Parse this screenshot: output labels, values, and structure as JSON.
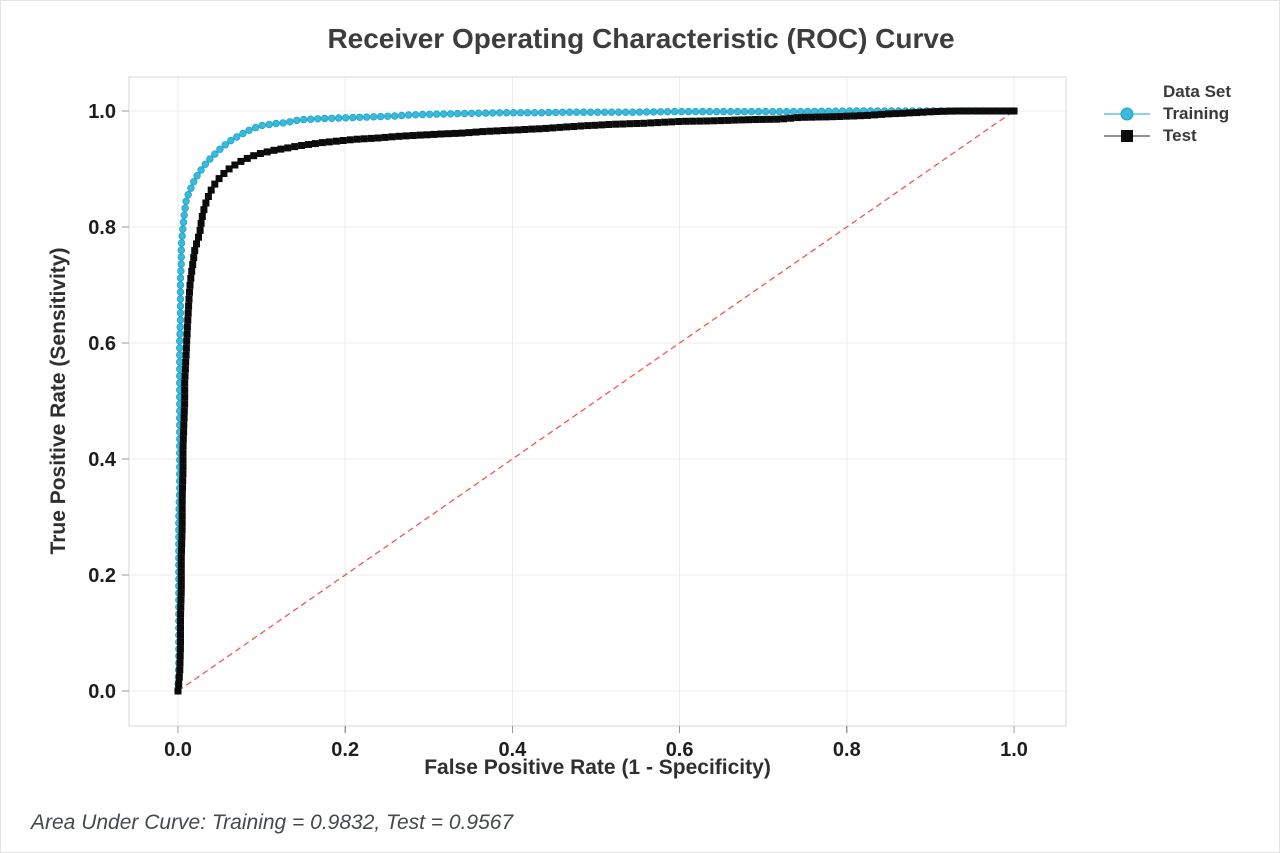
{
  "chart_data": {
    "type": "line",
    "title": "Receiver Operating Characteristic (ROC) Curve",
    "xlabel": "False Positive Rate (1 - Specificity)",
    "ylabel": "True Positive Rate (Sensitivity)",
    "footer": "Area Under Curve: Training = 0.9832, Test = 0.9567",
    "auc": {
      "training": 0.9832,
      "test": 0.9567
    },
    "xlim": [
      0,
      1
    ],
    "ylim": [
      0,
      1
    ],
    "grid": true,
    "x_ticks": [
      "0.0",
      "0.2",
      "0.4",
      "0.6",
      "0.8",
      "1.0"
    ],
    "y_ticks": [
      "0.0",
      "0.2",
      "0.4",
      "0.6",
      "0.8",
      "1.0"
    ],
    "x_tick_values": [
      0,
      0.2,
      0.4,
      0.6,
      0.8,
      1.0
    ],
    "y_tick_values": [
      0,
      0.2,
      0.4,
      0.6,
      0.8,
      1.0
    ],
    "legend": {
      "title": "Data Set",
      "position": "right",
      "entries": [
        {
          "label": "Training",
          "marker": "circle",
          "color": "#3cb9da",
          "edge_color": "#1ba6c9",
          "line_color": "#8ad4e8"
        },
        {
          "label": "Test",
          "marker": "square",
          "color": "#0b0b0b",
          "edge_color": "#0b0b0b",
          "line_color": "#6e6e6e"
        }
      ]
    },
    "reference_line": {
      "from": [
        0,
        0
      ],
      "to": [
        1,
        1
      ],
      "style": "dashed",
      "color": "#ef5753"
    },
    "style": {
      "background": "#ffffff",
      "grid_color": "#ececec",
      "border_color": "#d7d7d7",
      "tick_color": "#9b9b9b",
      "tick_label_color": "#1e1e1e",
      "title_color": "#3d3d3d",
      "axis_label_color": "#2f2f2f",
      "footer_color": "#45494c"
    },
    "series": [
      {
        "name": "Training",
        "marker": "circle",
        "color": "#3cb9da",
        "edge_color": "#1ba6c9",
        "line_color": "#59c6e2",
        "line_width": 1.6,
        "points": [
          [
            0.0,
            0.0
          ],
          [
            0.001,
            0.05
          ],
          [
            0.001,
            0.1
          ],
          [
            0.001,
            0.15
          ],
          [
            0.001,
            0.2
          ],
          [
            0.001,
            0.25
          ],
          [
            0.001,
            0.3
          ],
          [
            0.002,
            0.35
          ],
          [
            0.002,
            0.4
          ],
          [
            0.002,
            0.45
          ],
          [
            0.002,
            0.5
          ],
          [
            0.002,
            0.55
          ],
          [
            0.002,
            0.6
          ],
          [
            0.003,
            0.64
          ],
          [
            0.003,
            0.68
          ],
          [
            0.003,
            0.71
          ],
          [
            0.004,
            0.74
          ],
          [
            0.004,
            0.765
          ],
          [
            0.005,
            0.785
          ],
          [
            0.006,
            0.8
          ],
          [
            0.007,
            0.815
          ],
          [
            0.008,
            0.828
          ],
          [
            0.009,
            0.838
          ],
          [
            0.01,
            0.847
          ],
          [
            0.012,
            0.855
          ],
          [
            0.014,
            0.862
          ],
          [
            0.016,
            0.869
          ],
          [
            0.018,
            0.876
          ],
          [
            0.021,
            0.884
          ],
          [
            0.024,
            0.891
          ],
          [
            0.028,
            0.899
          ],
          [
            0.032,
            0.907
          ],
          [
            0.036,
            0.914
          ],
          [
            0.04,
            0.92
          ],
          [
            0.045,
            0.927
          ],
          [
            0.05,
            0.934
          ],
          [
            0.056,
            0.941
          ],
          [
            0.062,
            0.948
          ],
          [
            0.069,
            0.954
          ],
          [
            0.076,
            0.96
          ],
          [
            0.084,
            0.966
          ],
          [
            0.092,
            0.971
          ],
          [
            0.1,
            0.975
          ],
          [
            0.11,
            0.977
          ],
          [
            0.12,
            0.979
          ],
          [
            0.13,
            0.98
          ],
          [
            0.138,
            0.983
          ],
          [
            0.148,
            0.985
          ],
          [
            0.16,
            0.986
          ],
          [
            0.175,
            0.987
          ],
          [
            0.195,
            0.988
          ],
          [
            0.215,
            0.989
          ],
          [
            0.235,
            0.99
          ],
          [
            0.255,
            0.991
          ],
          [
            0.275,
            0.993
          ],
          [
            0.295,
            0.994
          ],
          [
            0.32,
            0.995
          ],
          [
            0.35,
            0.996
          ],
          [
            0.39,
            0.997
          ],
          [
            0.43,
            0.997
          ],
          [
            0.47,
            0.998
          ],
          [
            0.51,
            0.998
          ],
          [
            0.55,
            0.998
          ],
          [
            0.6,
            0.999
          ],
          [
            0.65,
            0.999
          ],
          [
            0.7,
            0.999
          ],
          [
            0.75,
            0.999
          ],
          [
            0.8,
            1.0
          ],
          [
            0.85,
            1.0
          ],
          [
            0.9,
            1.0
          ],
          [
            1.0,
            1.0
          ]
        ]
      },
      {
        "name": "Test",
        "marker": "square",
        "color": "#0b0b0b",
        "edge_color": "#0b0b0b",
        "line_color": "#0b0b0b",
        "line_width": 1.8,
        "points": [
          [
            0.0,
            0.0
          ],
          [
            0.002,
            0.03
          ],
          [
            0.003,
            0.08
          ],
          [
            0.003,
            0.13
          ],
          [
            0.004,
            0.18
          ],
          [
            0.004,
            0.23
          ],
          [
            0.005,
            0.28
          ],
          [
            0.005,
            0.33
          ],
          [
            0.006,
            0.38
          ],
          [
            0.006,
            0.42
          ],
          [
            0.007,
            0.46
          ],
          [
            0.008,
            0.5
          ],
          [
            0.008,
            0.53
          ],
          [
            0.009,
            0.56
          ],
          [
            0.01,
            0.59
          ],
          [
            0.011,
            0.62
          ],
          [
            0.012,
            0.645
          ],
          [
            0.013,
            0.67
          ],
          [
            0.014,
            0.695
          ],
          [
            0.016,
            0.72
          ],
          [
            0.018,
            0.74
          ],
          [
            0.02,
            0.76
          ],
          [
            0.023,
            0.775
          ],
          [
            0.026,
            0.79
          ],
          [
            0.028,
            0.81
          ],
          [
            0.03,
            0.825
          ],
          [
            0.033,
            0.84
          ],
          [
            0.037,
            0.855
          ],
          [
            0.041,
            0.868
          ],
          [
            0.046,
            0.878
          ],
          [
            0.052,
            0.888
          ],
          [
            0.059,
            0.898
          ],
          [
            0.067,
            0.906
          ],
          [
            0.075,
            0.913
          ],
          [
            0.084,
            0.919
          ],
          [
            0.094,
            0.925
          ],
          [
            0.105,
            0.929
          ],
          [
            0.117,
            0.933
          ],
          [
            0.13,
            0.936
          ],
          [
            0.145,
            0.94
          ],
          [
            0.16,
            0.943
          ],
          [
            0.175,
            0.946
          ],
          [
            0.19,
            0.948
          ],
          [
            0.21,
            0.951
          ],
          [
            0.235,
            0.953
          ],
          [
            0.26,
            0.956
          ],
          [
            0.285,
            0.958
          ],
          [
            0.31,
            0.96
          ],
          [
            0.34,
            0.962
          ],
          [
            0.37,
            0.965
          ],
          [
            0.4,
            0.967
          ],
          [
            0.44,
            0.97
          ],
          [
            0.48,
            0.974
          ],
          [
            0.52,
            0.977
          ],
          [
            0.56,
            0.979
          ],
          [
            0.6,
            0.982
          ],
          [
            0.64,
            0.983
          ],
          [
            0.68,
            0.985
          ],
          [
            0.72,
            0.986
          ],
          [
            0.745,
            0.989
          ],
          [
            0.78,
            0.99
          ],
          [
            0.82,
            0.992
          ],
          [
            0.85,
            0.995
          ],
          [
            0.88,
            0.997
          ],
          [
            0.905,
            0.999
          ],
          [
            0.93,
            1.0
          ],
          [
            1.0,
            1.0
          ]
        ]
      }
    ]
  }
}
